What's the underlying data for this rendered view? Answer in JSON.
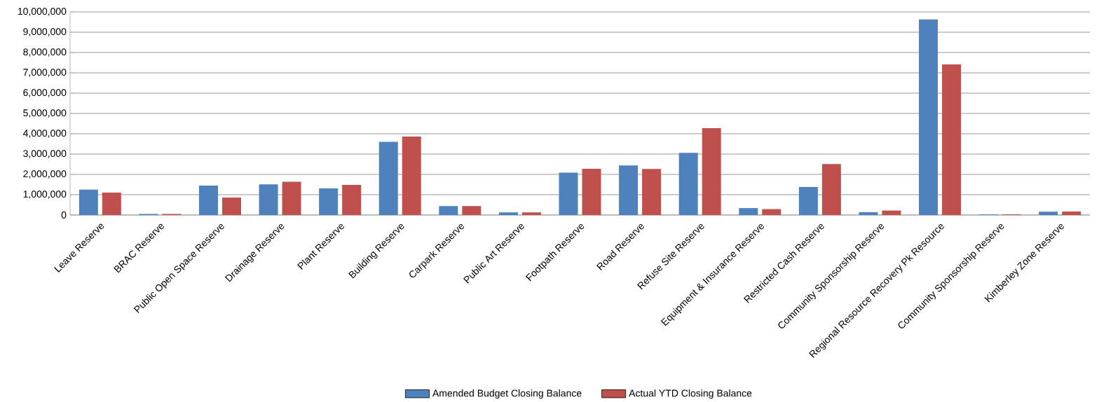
{
  "chart_data": {
    "type": "bar",
    "categories": [
      "Leave Reserve",
      "BRAC  Reserve",
      "Public Open Space Reserve",
      "Drainage Reserve",
      "Plant Reserve",
      "Building Reserve",
      "Carpark Reserve",
      "Public Art Reserve",
      "Footpath Reserve",
      "Road Reserve",
      "Refuse Site Reserve",
      "Equipment & Insurance Reserve",
      "Restricted Cash Reserve",
      "Community Sponsorship Reserve",
      "Regional Resource Recovery Pk Resource",
      "Community Sponsorship Reserve",
      "Kimberley Zone Reserve"
    ],
    "series": [
      {
        "name": "Amended Budget Closing Balance",
        "color": "#4f81bd",
        "values": [
          1250000,
          50000,
          1450000,
          1510000,
          1310000,
          3600000,
          440000,
          130000,
          2090000,
          2440000,
          3060000,
          340000,
          1380000,
          140000,
          9630000,
          30000,
          160000
        ]
      },
      {
        "name": "Actual YTD Closing Balance",
        "color": "#c0504d",
        "values": [
          1100000,
          50000,
          860000,
          1640000,
          1480000,
          3860000,
          440000,
          130000,
          2280000,
          2270000,
          4280000,
          290000,
          2510000,
          220000,
          7410000,
          30000,
          170000
        ]
      }
    ],
    "ylim": [
      0,
      10000000
    ],
    "yticks": [
      {
        "value": 0,
        "label": "0"
      },
      {
        "value": 1000000,
        "label": "1,000,000"
      },
      {
        "value": 2000000,
        "label": "2,000,000"
      },
      {
        "value": 3000000,
        "label": "3,000,000"
      },
      {
        "value": 4000000,
        "label": "4,000,000"
      },
      {
        "value": 5000000,
        "label": "5,000,000"
      },
      {
        "value": 6000000,
        "label": "6,000,000"
      },
      {
        "value": 7000000,
        "label": "7,000,000"
      },
      {
        "value": 8000000,
        "label": "8,000,000"
      },
      {
        "value": 9000000,
        "label": "9,000,000"
      },
      {
        "value": 10000000,
        "label": "10,000,000"
      }
    ],
    "grid": "y",
    "legend": "bottom"
  }
}
